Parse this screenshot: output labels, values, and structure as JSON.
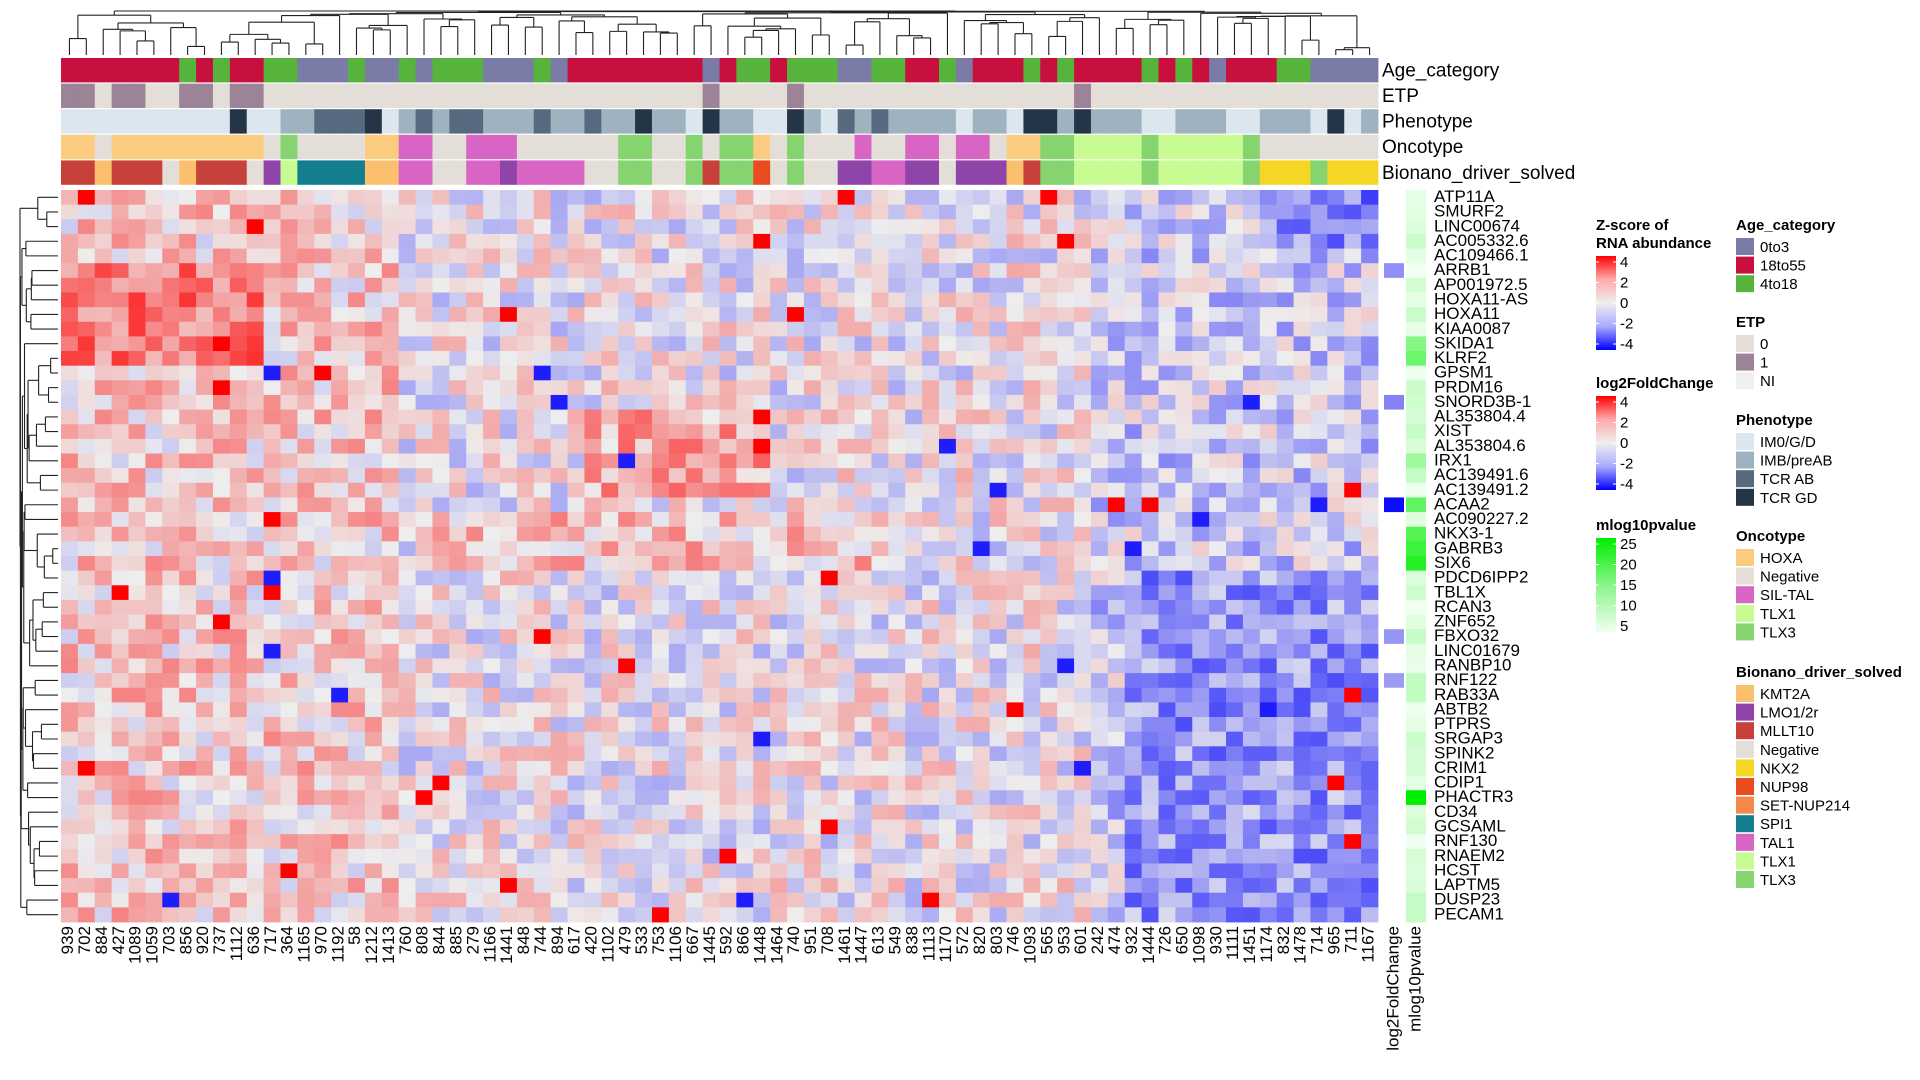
{
  "chart_data": {
    "type": "heatmap",
    "title": "",
    "columns": [
      "939",
      "702",
      "884",
      "427",
      "1089",
      "1059",
      "703",
      "856",
      "920",
      "737",
      "1112",
      "636",
      "717",
      "364",
      "1165",
      "970",
      "1192",
      "58",
      "1212",
      "1413",
      "760",
      "808",
      "844",
      "885",
      "279",
      "1166",
      "1441",
      "848",
      "744",
      "894",
      "617",
      "420",
      "1102",
      "479",
      "533",
      "753",
      "1106",
      "667",
      "1445",
      "592",
      "866",
      "1448",
      "1464",
      "740",
      "951",
      "708",
      "1461",
      "1447",
      "613",
      "549",
      "838",
      "1113",
      "1170",
      "572",
      "820",
      "803",
      "746",
      "1093",
      "565",
      "953",
      "601",
      "242",
      "474",
      "932",
      "1444",
      "726",
      "650",
      "1098",
      "930",
      "1111",
      "1451",
      "1174",
      "832",
      "1478",
      "714",
      "965",
      "711",
      "1167"
    ],
    "rows": [
      "ATP11A",
      "SMURF2",
      "LINC00674",
      "AC005332.6",
      "AC109466.1",
      "ARRB1",
      "AP001972.5",
      "HOXA11-AS",
      "HOXA11",
      "KIAA0087",
      "SKIDA1",
      "KLRF2",
      "GPSM1",
      "PRDM16",
      "SNORD3B-1",
      "AL353804.4",
      "XIST",
      "AL353804.6",
      "IRX1",
      "AC139491.6",
      "AC139491.2",
      "ACAA2",
      "AC090227.2",
      "NKX3-1",
      "GABRB3",
      "SIX6",
      "PDCD6IPP2",
      "TBL1X",
      "RCAN3",
      "ZNF652",
      "FBXO32",
      "LINC01679",
      "RANBP10",
      "RNF122",
      "RAB33A",
      "ABTB2",
      "PTPRS",
      "SRGAP3",
      "SPINK2",
      "CRIM1",
      "CDIP1",
      "PHACTR3",
      "CD34",
      "GCSAML",
      "RNF130",
      "RNAEM2",
      "HCST",
      "LAPTM5",
      "DUSP23",
      "PECAM1"
    ],
    "side_tracks": [
      "log2FoldChange",
      "mlog10pvalue"
    ],
    "annotation_tracks": [
      "Age_category",
      "ETP",
      "Phenotype",
      "Oncotype",
      "Bionano_driver_solved"
    ],
    "value_scale": {
      "min": -4,
      "max": 4,
      "low": "#0000FF",
      "mid": "#EEEEEE",
      "high": "#FF0000"
    },
    "pvalue_scale": {
      "min": 5,
      "max": 25,
      "low": "#F0FFF0",
      "high": "#00EE00"
    },
    "legend_placement": "right"
  },
  "legends": [
    {
      "title_lines": [
        "Z-score of",
        "RNA abundance"
      ],
      "type": "gradient",
      "ticks": [
        "4",
        "2",
        "0",
        "-2",
        "-4"
      ]
    },
    {
      "title_lines": [
        "log2FoldChange"
      ],
      "type": "gradient",
      "ticks": [
        "4",
        "2",
        "0",
        "-2",
        "-4"
      ]
    },
    {
      "title_lines": [
        "mlog10pvalue"
      ],
      "type": "gradient_green",
      "ticks": [
        "25",
        "20",
        "15",
        "10",
        "5"
      ]
    },
    {
      "title_lines": [
        "Age_category"
      ],
      "type": "discrete",
      "items": [
        {
          "label": "0to3",
          "color": "#7B7BA8"
        },
        {
          "label": "18to55",
          "color": "#C8103E"
        },
        {
          "label": "4to18",
          "color": "#56B43C"
        }
      ]
    },
    {
      "title_lines": [
        "ETP"
      ],
      "type": "discrete",
      "items": [
        {
          "label": "0",
          "color": "#E3DFD8"
        },
        {
          "label": "1",
          "color": "#9C8398"
        },
        {
          "label": "NI",
          "color": "#F0F0F0"
        }
      ]
    },
    {
      "title_lines": [
        "Phenotype"
      ],
      "type": "discrete",
      "items": [
        {
          "label": "IM0/G/D",
          "color": "#DCE6EE"
        },
        {
          "label": "IMB/preAB",
          "color": "#9FB2C0"
        },
        {
          "label": "TCR AB",
          "color": "#56697E"
        },
        {
          "label": "TCR GD",
          "color": "#253548"
        }
      ]
    },
    {
      "title_lines": [
        "Oncotype"
      ],
      "type": "discrete",
      "items": [
        {
          "label": "HOXA",
          "color": "#FBCB80"
        },
        {
          "label": "Negative",
          "color": "#E3DFD8"
        },
        {
          "label": "SIL-TAL",
          "color": "#D864C4"
        },
        {
          "label": "TLX1",
          "color": "#C8FC92"
        },
        {
          "label": "TLX3",
          "color": "#86D470"
        }
      ]
    },
    {
      "title_lines": [
        "Bionano_driver_solved"
      ],
      "type": "discrete",
      "items": [
        {
          "label": "KMT2A",
          "color": "#FBC06E"
        },
        {
          "label": "LMO1/2r",
          "color": "#8E44A8"
        },
        {
          "label": "MLLT10",
          "color": "#C8403A"
        },
        {
          "label": "Negative",
          "color": "#E3DFD8"
        },
        {
          "label": "NKX2",
          "color": "#F5D624"
        },
        {
          "label": "NUP98",
          "color": "#E84C20"
        },
        {
          "label": "SET-NUP214",
          "color": "#F4894A"
        },
        {
          "label": "SPI1",
          "color": "#137E8E"
        },
        {
          "label": "TAL1",
          "color": "#D864C4"
        },
        {
          "label": "TLX1",
          "color": "#C8FC92"
        },
        {
          "label": "TLX3",
          "color": "#86D470"
        }
      ]
    }
  ]
}
